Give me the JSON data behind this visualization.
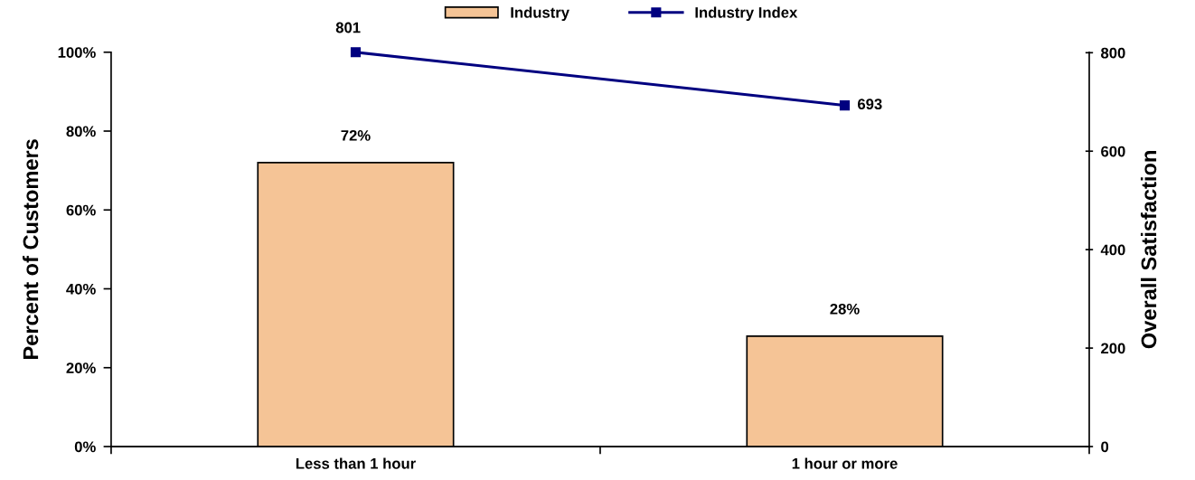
{
  "chart_data": {
    "type": "bar",
    "categories": [
      "Less than 1 hour",
      "1 hour or more"
    ],
    "ylabel": "Percent of Customers",
    "y2label": "Overall Satisfaction",
    "ylim": [
      0,
      100
    ],
    "yticks": [
      {
        "value": 0,
        "label": "0%"
      },
      {
        "value": 20,
        "label": "20%"
      },
      {
        "value": 40,
        "label": "40%"
      },
      {
        "value": 60,
        "label": "60%"
      },
      {
        "value": 80,
        "label": "80%"
      },
      {
        "value": 100,
        "label": "100%"
      }
    ],
    "y2lim": [
      0,
      801
    ],
    "y2ticks": [
      0,
      200,
      400,
      600,
      800
    ],
    "legend": "top",
    "series": [
      {
        "name": "Industry",
        "color": "#f5c496",
        "values": [
          72,
          28
        ],
        "value_labels": [
          "72%",
          "28%"
        ]
      },
      {
        "name": "Industry Index",
        "type": "line",
        "axis": "y2",
        "color": "#000080",
        "marker": "square",
        "line_style": "solid",
        "values": [
          801,
          693
        ],
        "value_labels": [
          "801",
          "693"
        ]
      }
    ]
  }
}
